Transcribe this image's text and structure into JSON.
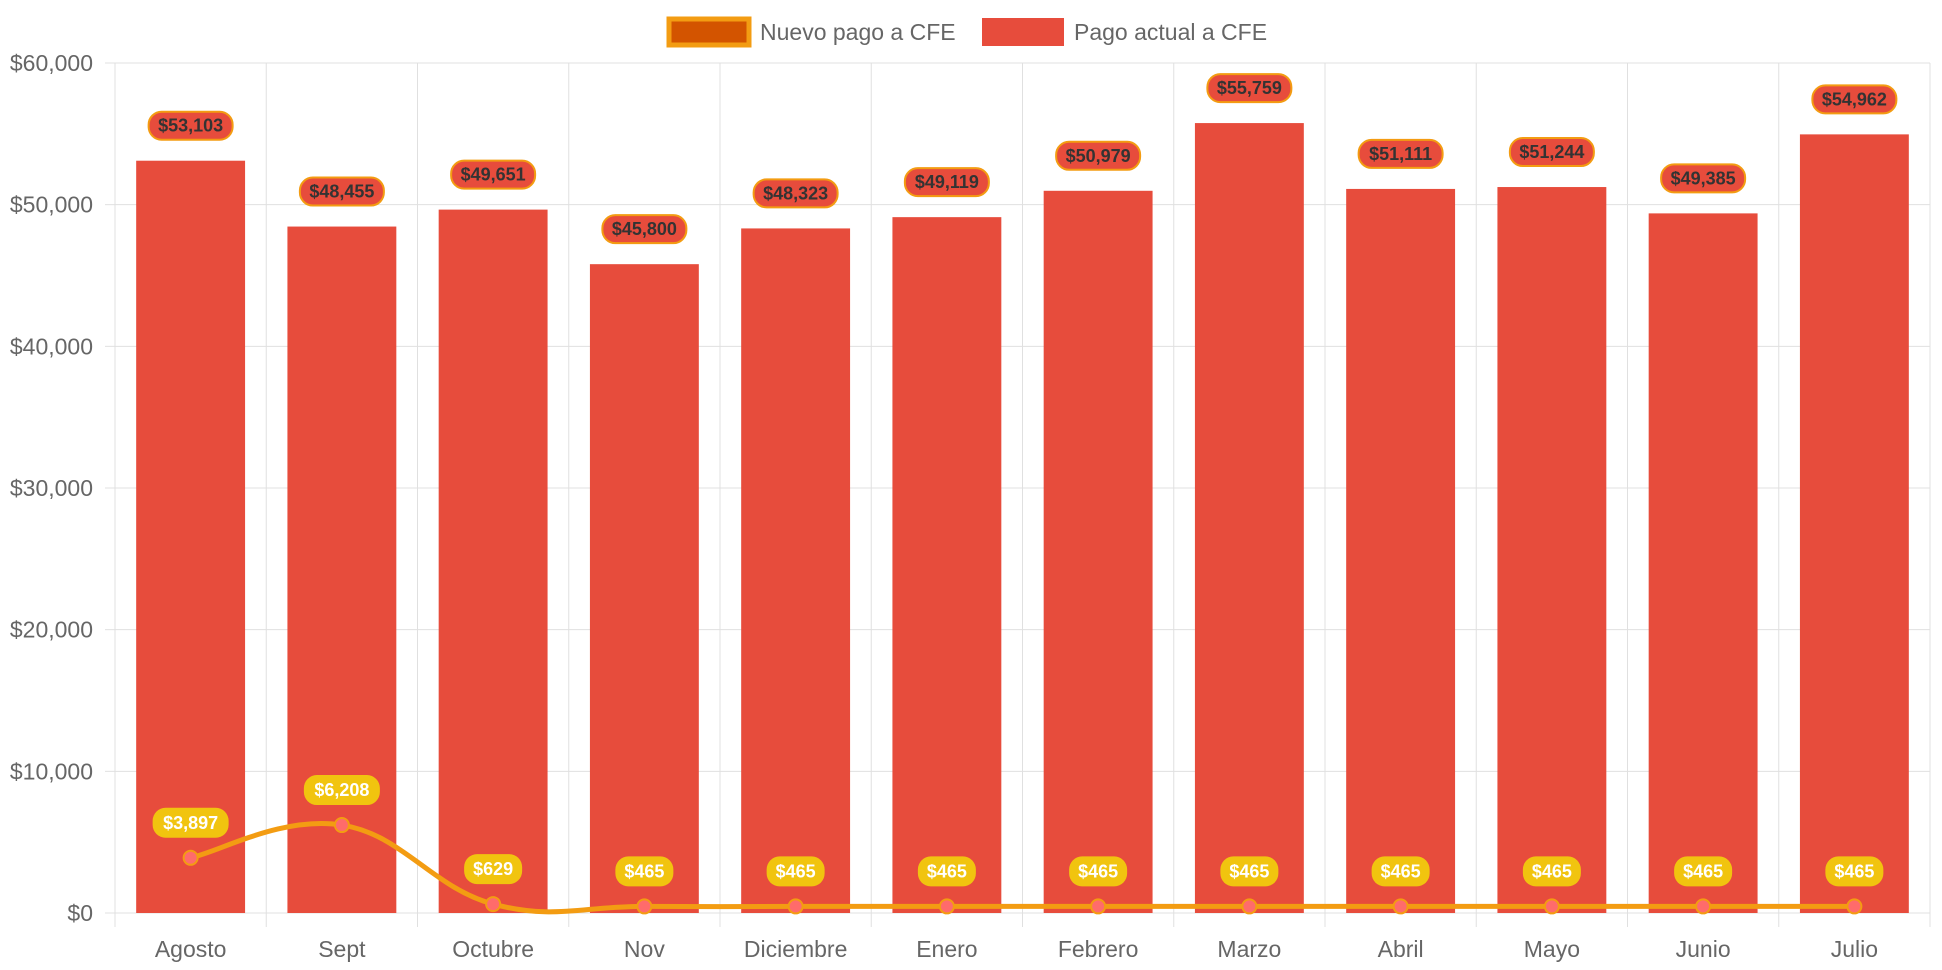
{
  "chart_data": {
    "type": "bar",
    "categories": [
      "Agosto",
      "Sept",
      "Octubre",
      "Nov",
      "Diciembre",
      "Enero",
      "Febrero",
      "Marzo",
      "Abril",
      "Mayo",
      "Junio",
      "Julio"
    ],
    "series": [
      {
        "name": "Nuevo pago a CFE",
        "type": "line",
        "values": [
          3897,
          6208,
          629,
          465,
          465,
          465,
          465,
          465,
          465,
          465,
          465,
          465
        ],
        "labels": [
          "$3,897",
          "$6,208",
          "$629",
          "$465",
          "$465",
          "$465",
          "$465",
          "$465",
          "$465",
          "$465",
          "$465",
          "$465"
        ],
        "color": "#f39c12",
        "point_color": "#ff6b6b",
        "label_bg": "#f1c40f"
      },
      {
        "name": "Pago actual a CFE",
        "type": "bar",
        "values": [
          53103,
          48455,
          49651,
          45800,
          48323,
          49119,
          50979,
          55759,
          51111,
          51244,
          49385,
          54962
        ],
        "labels": [
          "$53,103",
          "$48,455",
          "$49,651",
          "$45,800",
          "$48,323",
          "$49,119",
          "$50,979",
          "$55,759",
          "$51,111",
          "$51,244",
          "$49,385",
          "$54,962"
        ],
        "color": "#e74c3c",
        "label_border": "#f39c12"
      }
    ],
    "ylim": [
      0,
      60000
    ],
    "yticks": [
      0,
      10000,
      20000,
      30000,
      40000,
      50000,
      60000
    ],
    "ytick_labels": [
      "$0",
      "$10,000",
      "$20,000",
      "$30,000",
      "$40,000",
      "$50,000",
      "$60,000"
    ],
    "legend": {
      "position": "top",
      "items": [
        {
          "label": "Nuevo pago a CFE",
          "swatch_fill": "#d35400",
          "swatch_border": "#f39c12"
        },
        {
          "label": "Pago actual a CFE",
          "swatch_fill": "#e74c3c",
          "swatch_border": "#e74c3c"
        }
      ]
    },
    "grid": true
  }
}
